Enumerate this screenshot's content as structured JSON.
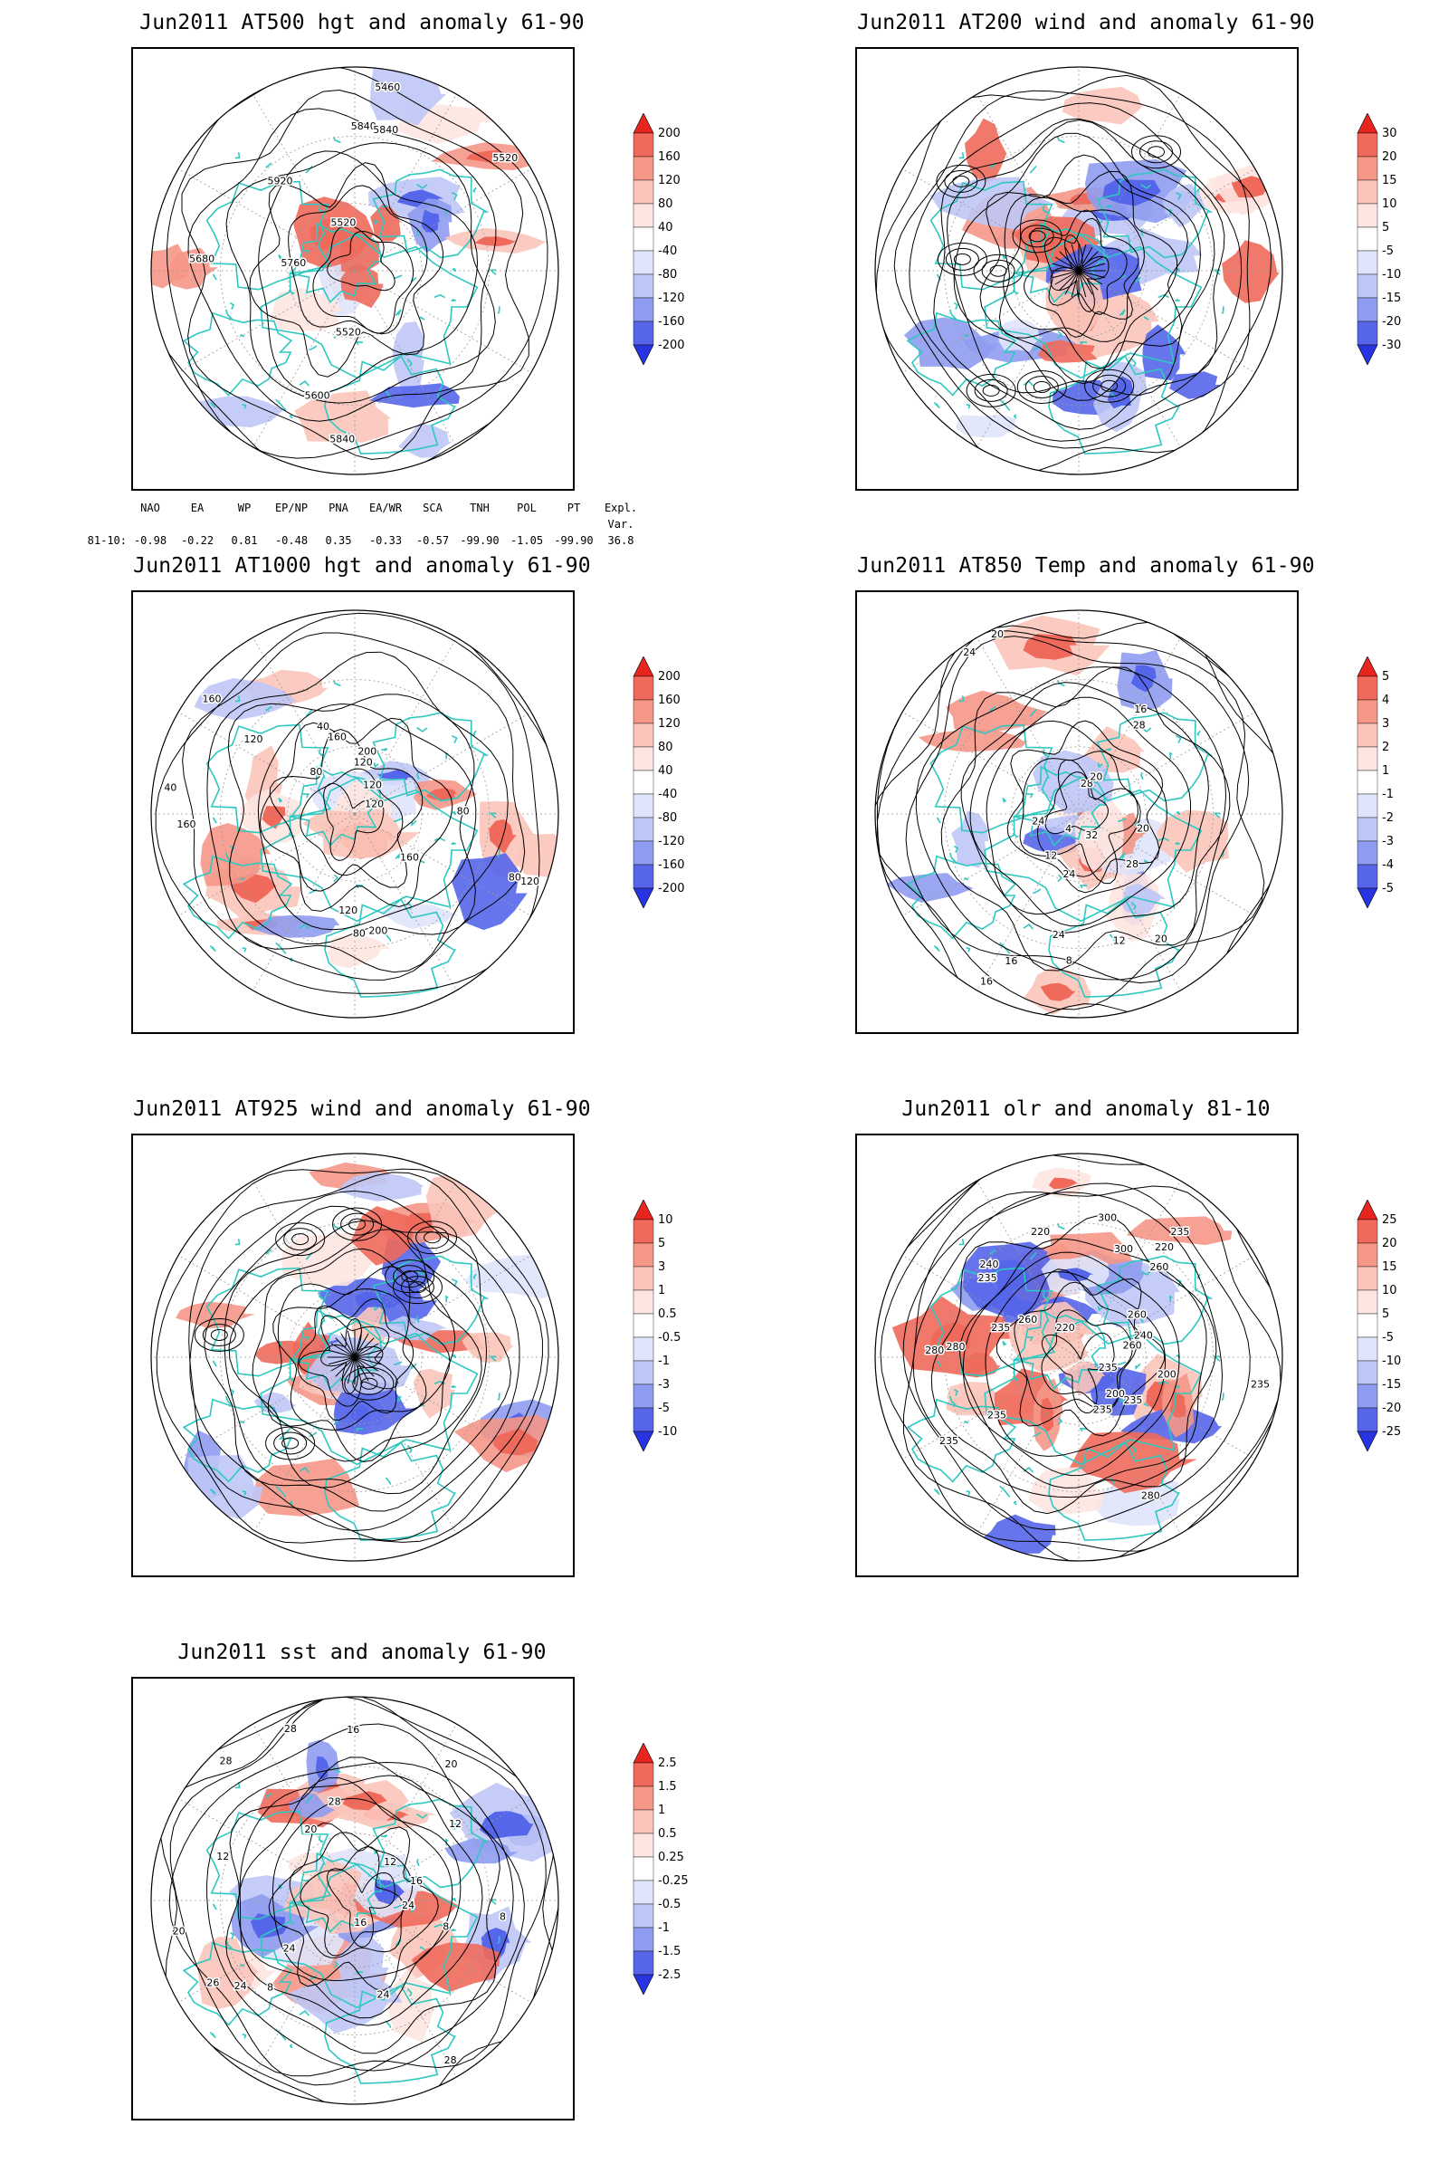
{
  "panels": [
    {
      "id": "p1",
      "title": "Jun2011 AT500 hgt and anomaly 61-90",
      "col": 0,
      "row": 0,
      "style": "height",
      "contour_labels": [
        "5840",
        "5520",
        "5520",
        "5460",
        "5520",
        "5600",
        "5680",
        "5760",
        "5840",
        "5840",
        "5920"
      ],
      "colorbar": [
        "200",
        "160",
        "120",
        "80",
        "40",
        "-40",
        "-80",
        "-120",
        "-160",
        "-200"
      ],
      "colors": [
        "#e8241f",
        "#f06a5c",
        "#f59787",
        "#fbc5bb",
        "#fde6e1",
        "#ffffff",
        "#e0e4fb",
        "#bec6f6",
        "#8f9cf0",
        "#5566ea",
        "#2734e0"
      ]
    },
    {
      "id": "p2",
      "title": "Jun2011 AT200 wind and anomaly 61-90",
      "col": 1,
      "row": 0,
      "style": "wind",
      "contour_labels": [],
      "colorbar": [
        "30",
        "20",
        "15",
        "10",
        "5",
        "-5",
        "-10",
        "-15",
        "-20",
        "-30"
      ],
      "colors": [
        "#e8241f",
        "#f06a5c",
        "#f59787",
        "#fbc5bb",
        "#fde6e1",
        "#ffffff",
        "#e0e4fb",
        "#bec6f6",
        "#8f9cf0",
        "#5566ea",
        "#2734e0"
      ]
    },
    {
      "id": "p3",
      "title": "Jun2011 AT1000 hgt and anomaly 61-90",
      "col": 0,
      "row": 1,
      "style": "height",
      "contour_labels": [
        "120",
        "160",
        "120",
        "80",
        "200",
        "160",
        "120",
        "80",
        "40",
        "160",
        "120",
        "200",
        "160",
        "120",
        "80",
        "40",
        "120",
        "80"
      ],
      "colorbar": [
        "200",
        "160",
        "120",
        "80",
        "40",
        "-40",
        "-80",
        "-120",
        "-160",
        "-200"
      ],
      "colors": [
        "#e8241f",
        "#f06a5c",
        "#f59787",
        "#fbc5bb",
        "#fde6e1",
        "#ffffff",
        "#e0e4fb",
        "#bec6f6",
        "#8f9cf0",
        "#5566ea",
        "#2734e0"
      ]
    },
    {
      "id": "p4",
      "title": "Jun2011 AT850 Temp and anomaly 61-90",
      "col": 1,
      "row": 1,
      "style": "temp",
      "contour_labels": [
        "16",
        "12",
        "20",
        "24",
        "28",
        "4",
        "8",
        "20",
        "24",
        "28",
        "32",
        "16",
        "12",
        "24",
        "28",
        "20",
        "24",
        "20",
        "16"
      ],
      "colorbar": [
        "5",
        "4",
        "3",
        "2",
        "1",
        "-1",
        "-2",
        "-3",
        "-4",
        "-5"
      ],
      "colors": [
        "#e8241f",
        "#f06a5c",
        "#f59787",
        "#fbc5bb",
        "#fde6e1",
        "#ffffff",
        "#e0e4fb",
        "#bec6f6",
        "#8f9cf0",
        "#5566ea",
        "#2734e0"
      ]
    },
    {
      "id": "p5",
      "title": "Jun2011 AT925 wind and anomaly 61-90",
      "col": 0,
      "row": 2,
      "style": "wind",
      "contour_labels": [],
      "colorbar": [
        "10",
        "5",
        "3",
        "1",
        "0.5",
        "-0.5",
        "-1",
        "-3",
        "-5",
        "-10"
      ],
      "colors": [
        "#e8241f",
        "#f06a5c",
        "#f59787",
        "#fbc5bb",
        "#fde6e1",
        "#ffffff",
        "#e0e4fb",
        "#bec6f6",
        "#8f9cf0",
        "#5566ea",
        "#2734e0"
      ]
    },
    {
      "id": "p6",
      "title": "Jun2011 olr and anomaly 81-10",
      "col": 1,
      "row": 2,
      "style": "olr",
      "contour_labels": [
        "235",
        "240",
        "235",
        "260",
        "200",
        "280",
        "200",
        "235",
        "220",
        "235",
        "300",
        "235",
        "220",
        "260",
        "235",
        "300",
        "280",
        "260",
        "235",
        "220",
        "240",
        "235",
        "260",
        "235",
        "280"
      ],
      "colorbar": [
        "25",
        "20",
        "15",
        "10",
        "5",
        "-5",
        "-10",
        "-15",
        "-20",
        "-25"
      ],
      "colors": [
        "#e8241f",
        "#f06a5c",
        "#f59787",
        "#fbc5bb",
        "#fde6e1",
        "#ffffff",
        "#e0e4fb",
        "#bec6f6",
        "#8f9cf0",
        "#5566ea",
        "#2734e0"
      ]
    },
    {
      "id": "p7",
      "title": "Jun2011 sst and anomaly 61-90",
      "col": 0,
      "row": 3,
      "style": "sst",
      "contour_labels": [
        "28",
        "24",
        "20",
        "16",
        "12",
        "8",
        "26",
        "24",
        "20",
        "16",
        "12",
        "8",
        "28",
        "24",
        "12",
        "8",
        "16",
        "20",
        "24",
        "28",
        "28"
      ],
      "colorbar": [
        "2.5",
        "1.5",
        "1",
        "0.5",
        "0.25",
        "-0.25",
        "-0.5",
        "-1",
        "-1.5",
        "-2.5"
      ],
      "colors": [
        "#e8241f",
        "#f06a5c",
        "#f59787",
        "#fbc5bb",
        "#fde6e1",
        "#ffffff",
        "#e0e4fb",
        "#bec6f6",
        "#8f9cf0",
        "#5566ea",
        "#2734e0"
      ]
    }
  ],
  "index_table": {
    "headers": [
      "NAO",
      "EA",
      "WP",
      "EP/NP",
      "PNA",
      "EA/WR",
      "SCA",
      "TNH",
      "POL",
      "PT",
      "Expl. Var."
    ],
    "row_label": "81-10:",
    "values": [
      "-0.98",
      "-0.22",
      "0.81",
      "-0.48",
      "0.35",
      "-0.33",
      "-0.57",
      "-99.90",
      "-1.05",
      "-99.90",
      "36.8"
    ]
  },
  "land_color": "#2ec8c0",
  "contour_color": "#000000",
  "grid_color": "#9a9a9a"
}
